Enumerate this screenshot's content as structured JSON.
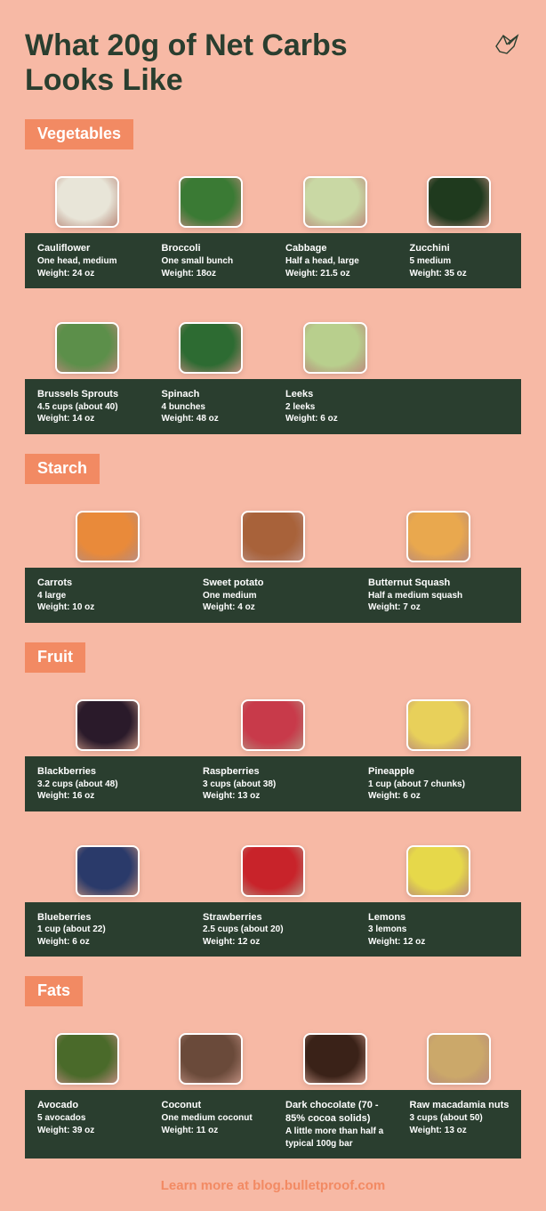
{
  "title": "What 20g of Net Carbs Looks Like",
  "footer": "Learn more at blog.bulletproof.com",
  "colors": {
    "page_bg": "#f7b9a5",
    "accent": "#f28a63",
    "dark_bar": "#2a3e2f",
    "text_on_dark": "#ffffff",
    "text_title": "#2a3e2f"
  },
  "sections": [
    {
      "label": "Vegetables",
      "rows": [
        {
          "cols": 4,
          "items": [
            {
              "name": "Cauliflower",
              "portion": "One head, medium",
              "weight": "Weight: 24 oz",
              "illus_color": "#e8e5d8"
            },
            {
              "name": "Broccoli",
              "portion": "One small bunch",
              "weight": "Weight: 18oz",
              "illus_color": "#3a7a34"
            },
            {
              "name": "Cabbage",
              "portion": "Half a head, large",
              "weight": "Weight: 21.5 oz",
              "illus_color": "#c9d8a4"
            },
            {
              "name": "Zucchini",
              "portion": "5 medium",
              "weight": "Weight: 35 oz",
              "illus_color": "#1f3a1e"
            }
          ]
        },
        {
          "cols": 4,
          "items": [
            {
              "name": "Brussels Sprouts",
              "portion": "4.5 cups (about 40)",
              "weight": "Weight: 14 oz",
              "illus_color": "#5c8f4a"
            },
            {
              "name": "Spinach",
              "portion": "4 bunches",
              "weight": "Weight: 48 oz",
              "illus_color": "#2d6b32"
            },
            {
              "name": "Leeks",
              "portion": "2 leeks",
              "weight": "Weight: 6 oz",
              "illus_color": "#b8cf8d"
            },
            null
          ]
        }
      ]
    },
    {
      "label": "Starch",
      "rows": [
        {
          "cols": 3,
          "items": [
            {
              "name": "Carrots",
              "portion": "4 large",
              "weight": "Weight: 10 oz",
              "illus_color": "#e98a3a"
            },
            {
              "name": "Sweet potato",
              "portion": "One medium",
              "weight": "Weight: 4 oz",
              "illus_color": "#a8623a"
            },
            {
              "name": "Butternut Squash",
              "portion": "Half a medium squash",
              "weight": "Weight: 7 oz",
              "illus_color": "#e9a84e"
            }
          ]
        }
      ]
    },
    {
      "label": "Fruit",
      "rows": [
        {
          "cols": 3,
          "items": [
            {
              "name": "Blackberries",
              "portion": "3.2 cups (about 48)",
              "weight": "Weight: 16 oz",
              "illus_color": "#2a1a2a"
            },
            {
              "name": "Raspberries",
              "portion": "3 cups (about 38)",
              "weight": "Weight: 13 oz",
              "illus_color": "#c83a4a"
            },
            {
              "name": "Pineapple",
              "portion": "1 cup (about 7 chunks)",
              "weight": "Weight: 6 oz",
              "illus_color": "#e8d05a"
            }
          ]
        },
        {
          "cols": 3,
          "items": [
            {
              "name": "Blueberries",
              "portion": "1 cup (about 22)",
              "weight": "Weight: 6 oz",
              "illus_color": "#2a3a6a"
            },
            {
              "name": "Strawberries",
              "portion": "2.5 cups (about 20)",
              "weight": "Weight: 12 oz",
              "illus_color": "#c8232a"
            },
            {
              "name": "Lemons",
              "portion": "3 lemons",
              "weight": "Weight: 12 oz",
              "illus_color": "#e6d84a"
            }
          ]
        }
      ]
    },
    {
      "label": "Fats",
      "rows": [
        {
          "cols": 4,
          "items": [
            {
              "name": "Avocado",
              "portion": "5 avocados",
              "weight": "Weight: 39 oz",
              "illus_color": "#4a6a2a"
            },
            {
              "name": "Coconut",
              "portion": "One medium coconut",
              "weight": "Weight: 11 oz",
              "illus_color": "#6a4a3a"
            },
            {
              "name": "Dark chocolate (70 - 85% cocoa solids)",
              "portion": "A little more than half a typical 100g bar",
              "weight": "",
              "illus_color": "#3a2218"
            },
            {
              "name": "Raw macadamia nuts",
              "portion": "3 cups (about 50)",
              "weight": "Weight: 13 oz",
              "illus_color": "#cba86a"
            }
          ]
        }
      ]
    }
  ]
}
